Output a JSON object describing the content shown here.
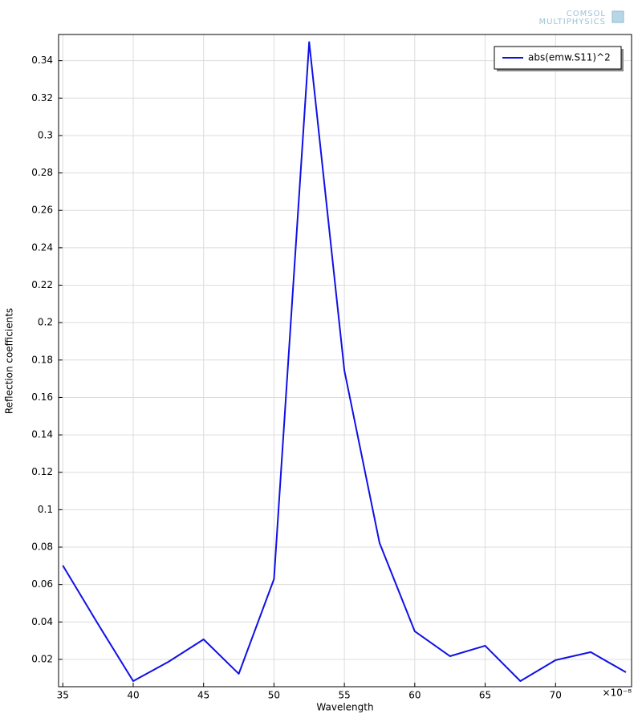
{
  "chart_data": {
    "type": "line",
    "watermark": [
      "COMSOL",
      "MULTIPHYSICS"
    ],
    "xlabel": "Wavelength",
    "ylabel": "Reflection coefficients",
    "x_multiplier": "×10⁻⁸",
    "x": [
      35,
      37.5,
      40,
      42.5,
      45,
      47.5,
      50,
      52.5,
      55,
      57.5,
      60,
      62.5,
      65,
      67.5,
      70,
      72.5,
      75
    ],
    "series": [
      {
        "name": "abs(emw.S11)^2",
        "color": "#1010e6",
        "values": [
          0.0702,
          0.0389,
          0.0084,
          0.0187,
          0.0307,
          0.0123,
          0.0629,
          0.35,
          0.1744,
          0.0822,
          0.035,
          0.0217,
          0.0273,
          0.0084,
          0.0196,
          0.0239,
          0.0131
        ]
      }
    ],
    "xlim": [
      34.7,
      75.4
    ],
    "ylim": [
      0.0054,
      0.354
    ],
    "xticks": [
      35,
      40,
      45,
      50,
      55,
      60,
      65,
      70
    ],
    "yticks": [
      0.02,
      0.04,
      0.06,
      0.08,
      0.1,
      0.12,
      0.14,
      0.16,
      0.18,
      0.2,
      0.22,
      0.24,
      0.26,
      0.28,
      0.3,
      0.32,
      0.34
    ],
    "grid": true,
    "legend": "upper right"
  }
}
